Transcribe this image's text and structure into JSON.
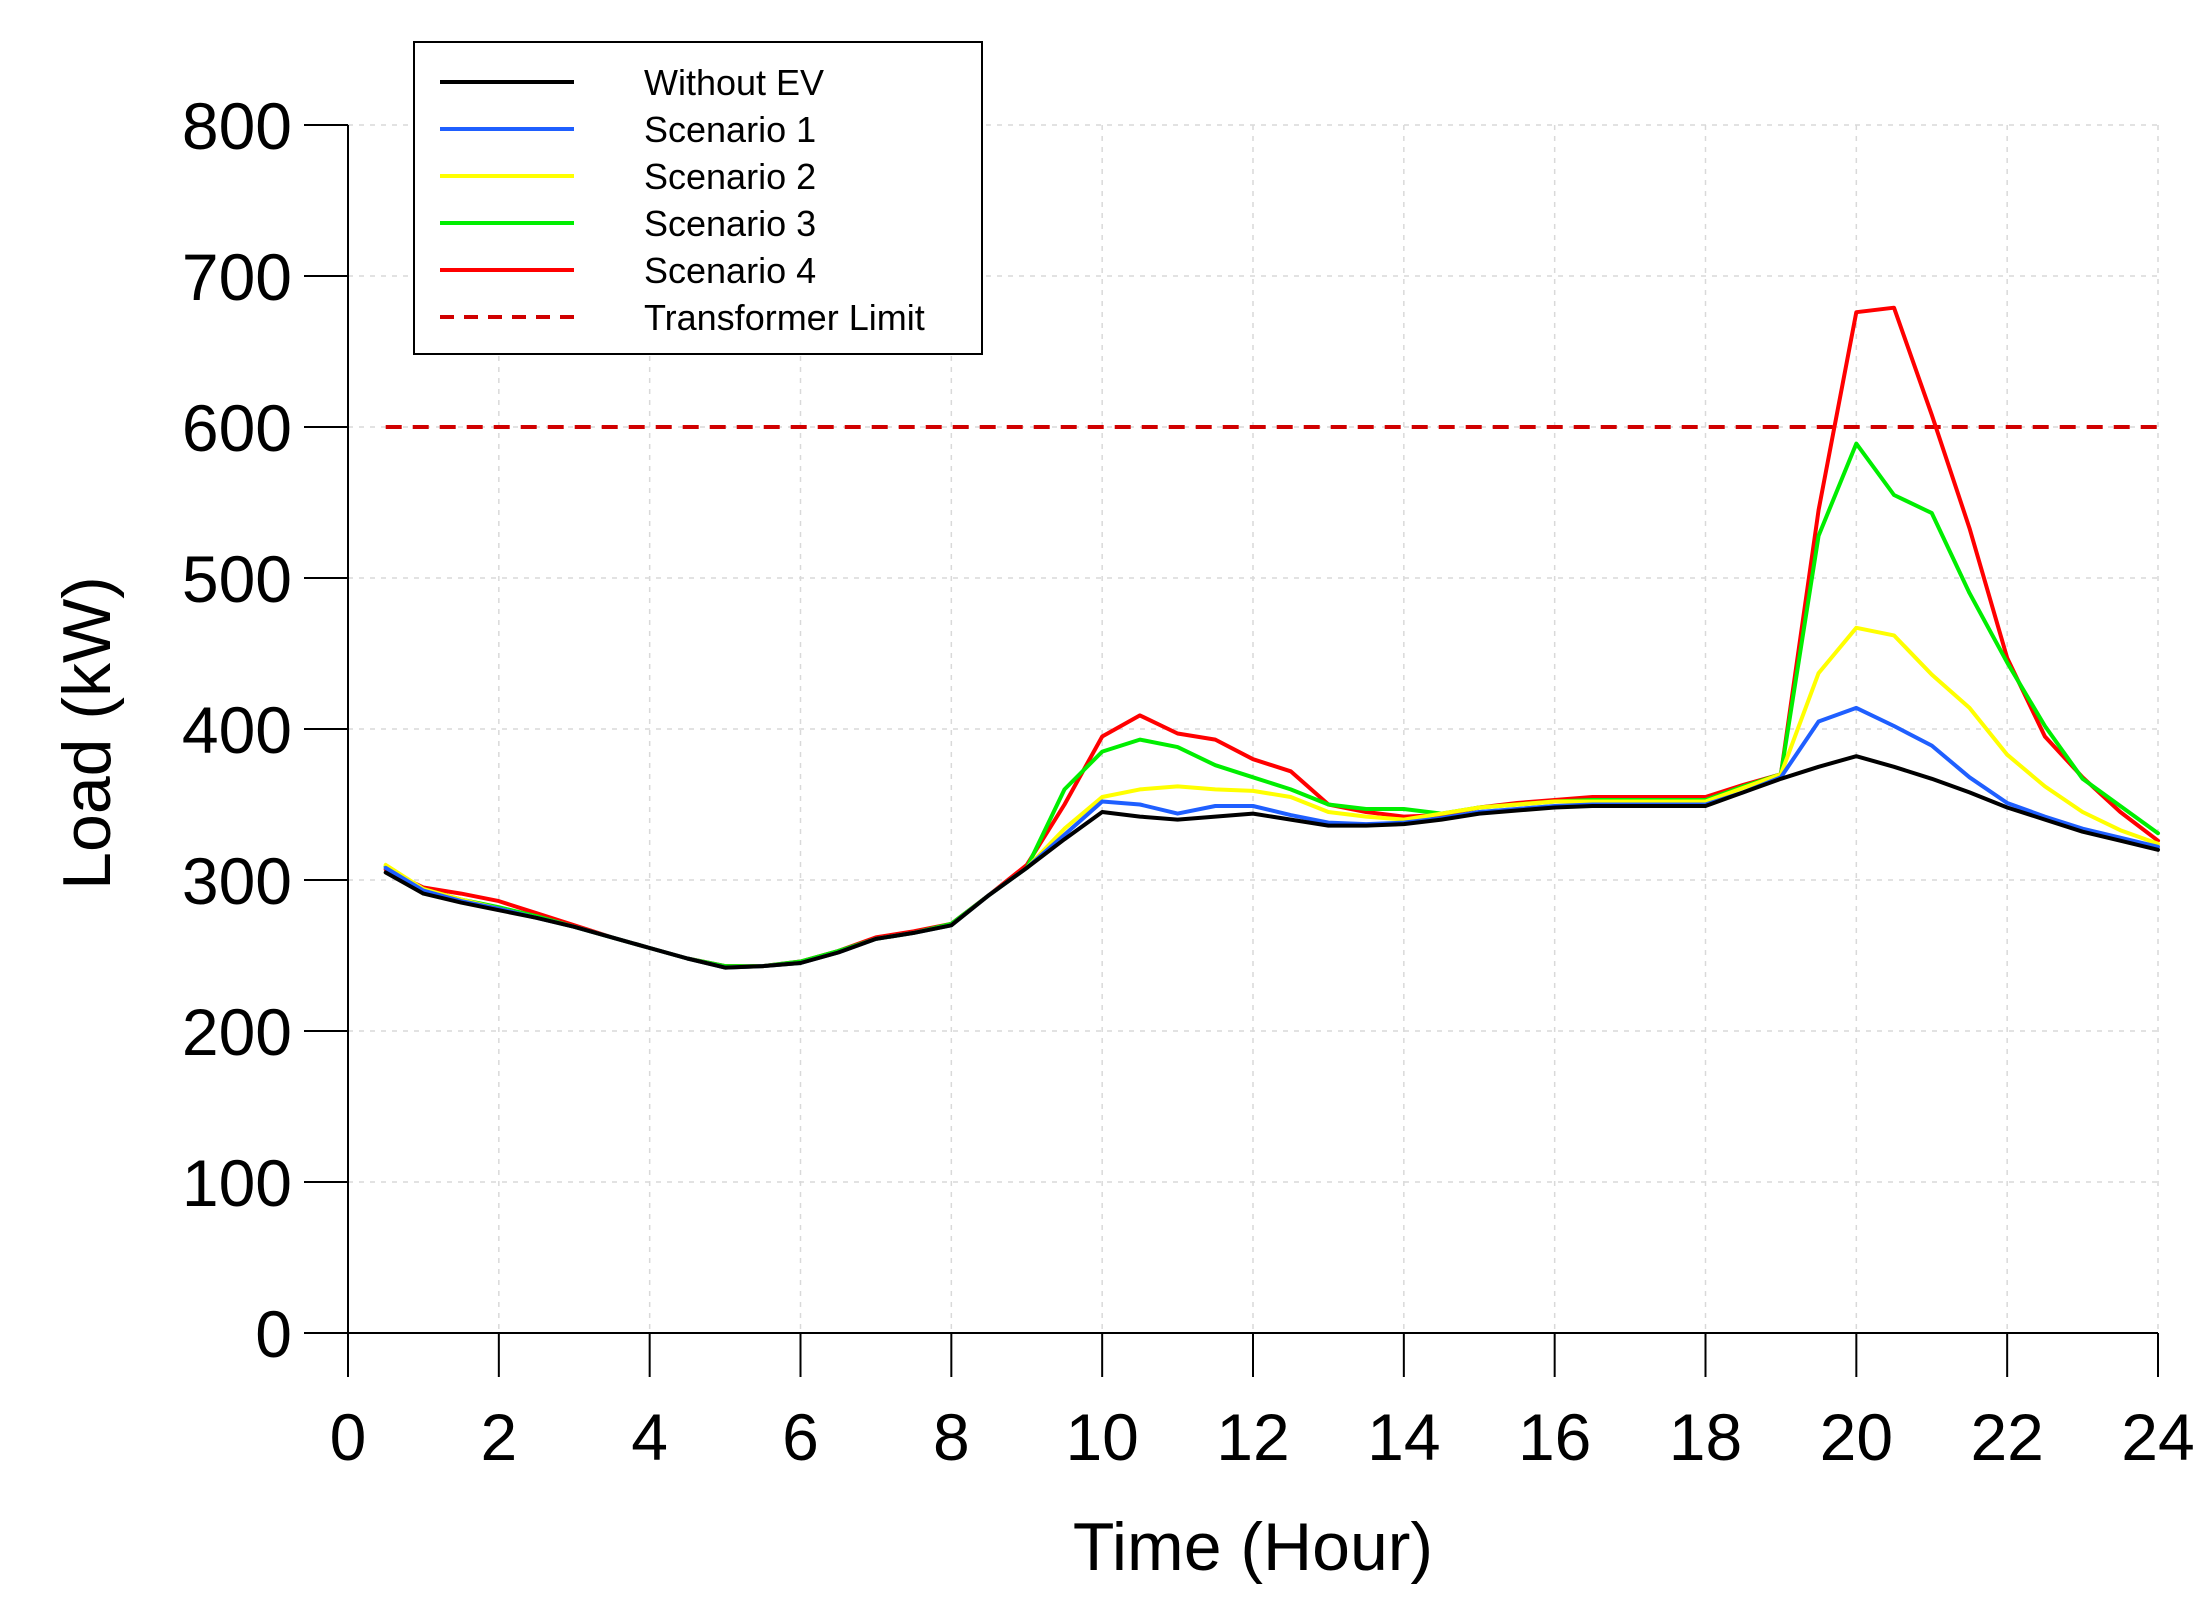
{
  "chart_data": {
    "type": "line",
    "title": "",
    "xlabel": "Time (Hour)",
    "ylabel": "Load (kW)",
    "xlim": [
      0,
      24
    ],
    "ylim": [
      0,
      800
    ],
    "xticks": [
      0,
      2,
      4,
      6,
      8,
      10,
      12,
      14,
      16,
      18,
      20,
      22,
      24
    ],
    "yticks": [
      0,
      100,
      200,
      300,
      400,
      500,
      600,
      700,
      800
    ],
    "grid": true,
    "legend_position": "top-left",
    "x": [
      0.5,
      1,
      1.5,
      2,
      2.5,
      3,
      3.5,
      4,
      4.5,
      5,
      5.5,
      6,
      6.5,
      7,
      7.5,
      8,
      8.5,
      9,
      9.5,
      10,
      10.5,
      11,
      11.5,
      12,
      12.5,
      13,
      13.5,
      14,
      14.5,
      15,
      15.5,
      16,
      16.5,
      17,
      17.5,
      18,
      18.5,
      19,
      19.5,
      20,
      20.5,
      21,
      21.5,
      22,
      22.5,
      23,
      23.5,
      24
    ],
    "series": [
      {
        "name": "Without EV",
        "color": "#000000",
        "style": "solid",
        "values": [
          305,
          291,
          285,
          280,
          275,
          269,
          262,
          255,
          248,
          242,
          243,
          245,
          252,
          261,
          265,
          270,
          290,
          308,
          327,
          345,
          342,
          340,
          342,
          344,
          340,
          336,
          336,
          337,
          340,
          344,
          346,
          348,
          349,
          349,
          349,
          349,
          358,
          367,
          375,
          382,
          375,
          367,
          358,
          348,
          340,
          332,
          326,
          320
        ]
      },
      {
        "name": "Scenario 1",
        "color": "#1f5fff",
        "style": "solid",
        "values": [
          308,
          293,
          286,
          281,
          275,
          269,
          262,
          255,
          248,
          242,
          243,
          245,
          252,
          261,
          265,
          270,
          290,
          308,
          330,
          352,
          350,
          344,
          349,
          349,
          343,
          338,
          337,
          338,
          341,
          345,
          347,
          349,
          350,
          350,
          350,
          350,
          358,
          368,
          405,
          414,
          402,
          389,
          368,
          351,
          342,
          334,
          328,
          322
        ]
      },
      {
        "name": "Scenario 2",
        "color": "#ffff00",
        "style": "solid",
        "values": [
          310,
          294,
          287,
          281,
          275,
          269,
          262,
          255,
          248,
          242,
          243,
          245,
          252,
          261,
          265,
          270,
          290,
          308,
          334,
          355,
          360,
          362,
          360,
          359,
          355,
          345,
          342,
          340,
          344,
          348,
          350,
          352,
          352,
          352,
          352,
          352,
          361,
          370,
          437,
          467,
          462,
          436,
          414,
          383,
          362,
          345,
          333,
          324
        ]
      },
      {
        "name": "Scenario 3",
        "color": "#00ee00",
        "style": "solid",
        "values": [
          309,
          294,
          287,
          282,
          276,
          269,
          262,
          255,
          248,
          243,
          243,
          246,
          253,
          261,
          265,
          271,
          290,
          308,
          360,
          385,
          393,
          388,
          376,
          368,
          360,
          350,
          347,
          347,
          344,
          348,
          350,
          352,
          353,
          353,
          353,
          353,
          362,
          370,
          528,
          589,
          555,
          543,
          490,
          444,
          402,
          367,
          349,
          331
        ]
      },
      {
        "name": "Scenario 4",
        "color": "#ff0000",
        "style": "solid",
        "values": [
          307,
          295,
          291,
          286,
          278,
          270,
          262,
          255,
          248,
          243,
          243,
          246,
          253,
          262,
          266,
          271,
          290,
          310,
          350,
          395,
          409,
          397,
          393,
          380,
          372,
          350,
          345,
          342,
          343,
          348,
          351,
          353,
          355,
          355,
          355,
          355,
          363,
          370,
          545,
          676,
          679,
          608,
          533,
          447,
          395,
          368,
          345,
          326
        ]
      },
      {
        "name": "Transformer Limit",
        "color": "#d00000",
        "style": "dashed",
        "values": [
          600,
          600,
          600,
          600,
          600,
          600,
          600,
          600,
          600,
          600,
          600,
          600,
          600,
          600,
          600,
          600,
          600,
          600,
          600,
          600,
          600,
          600,
          600,
          600,
          600,
          600,
          600,
          600,
          600,
          600,
          600,
          600,
          600,
          600,
          600,
          600,
          600,
          600,
          600,
          600,
          600,
          600,
          600,
          600,
          600,
          600,
          600,
          600
        ]
      }
    ]
  }
}
